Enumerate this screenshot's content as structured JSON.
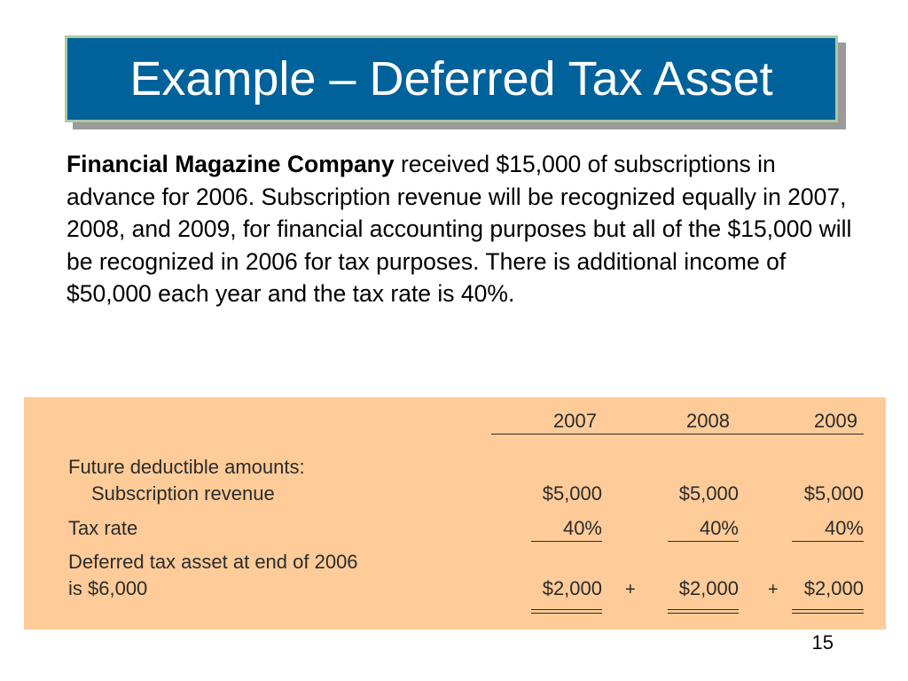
{
  "slide": {
    "title": "Example – Deferred Tax Asset",
    "body": {
      "company": "Financial Magazine Company",
      "text": " received $15,000 of subscriptions in advance for 2006. Subscription revenue will be recognized equally in 2007, 2008, and 2009, for financial accounting purposes but all of the $15,000 will be recognized in 2006 for tax purposes. There is additional income of $50,000 each year and the tax rate is 40%."
    },
    "page_number": "15"
  },
  "table": {
    "years": [
      "2007",
      "2008",
      "2009"
    ],
    "section_label": "Future deductible amounts:",
    "rows": {
      "subscription": {
        "label": "Subscription revenue",
        "values": [
          "$5,000",
          "$5,000",
          "$5,000"
        ]
      },
      "tax_rate": {
        "label": "Tax rate",
        "values": [
          "40%",
          "40%",
          "40%"
        ]
      },
      "deferred": {
        "label_line1": "Deferred tax asset at end of 2006",
        "label_line2": "is $6,000",
        "values": [
          "$2,000",
          "$2,000",
          "$2,000"
        ]
      }
    },
    "plus_sign": "+"
  },
  "colors": {
    "title_background": "#00629b",
    "title_border": "#a9c9a0",
    "table_background": "#ffcc99"
  }
}
